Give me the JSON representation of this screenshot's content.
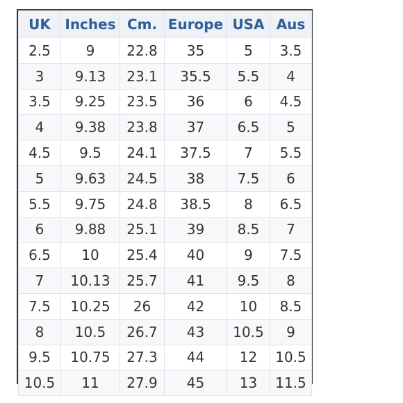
{
  "table": {
    "headers": [
      "UK",
      "Inches",
      "Cm.",
      "Europe",
      "USA",
      "Aus"
    ],
    "rows": [
      [
        "2.5",
        "9",
        "22.8",
        "35",
        "5",
        "3.5"
      ],
      [
        "3",
        "9.13",
        "23.1",
        "35.5",
        "5.5",
        "4"
      ],
      [
        "3.5",
        "9.25",
        "23.5",
        "36",
        "6",
        "4.5"
      ],
      [
        "4",
        "9.38",
        "23.8",
        "37",
        "6.5",
        "5"
      ],
      [
        "4.5",
        "9.5",
        "24.1",
        "37.5",
        "7",
        "5.5"
      ],
      [
        "5",
        "9.63",
        "24.5",
        "38",
        "7.5",
        "6"
      ],
      [
        "5.5",
        "9.75",
        "24.8",
        "38.5",
        "8",
        "6.5"
      ],
      [
        "6",
        "9.88",
        "25.1",
        "39",
        "8.5",
        "7"
      ],
      [
        "6.5",
        "10",
        "25.4",
        "40",
        "9",
        "7.5"
      ],
      [
        "7",
        "10.13",
        "25.7",
        "41",
        "9.5",
        "8"
      ],
      [
        "7.5",
        "10.25",
        "26",
        "42",
        "10",
        "8.5"
      ],
      [
        "8",
        "10.5",
        "26.7",
        "43",
        "10.5",
        "9"
      ],
      [
        "9.5",
        "10.75",
        "27.3",
        "44",
        "12",
        "10.5"
      ],
      [
        "10.5",
        "11",
        "27.9",
        "45",
        "13",
        "11.5"
      ]
    ]
  },
  "colors": {
    "header_text": "#2f5f97",
    "cell_text": "#333333",
    "border": "#dfe3ea",
    "outer_border": "#3a3a3a"
  }
}
